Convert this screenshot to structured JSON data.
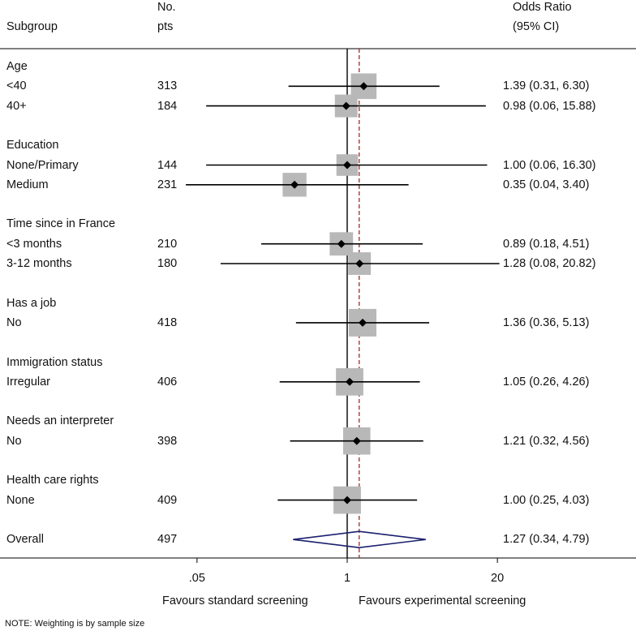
{
  "chart_data": {
    "type": "forest",
    "headers": {
      "subgroup": "Subgroup",
      "n_line1": "No.",
      "n_line2": "pts",
      "or_line1": "Odds Ratio",
      "or_line2": "(95% CI)"
    },
    "x_scale": "log",
    "xlim": [
      0.0025,
      400
    ],
    "xticks": [
      {
        "value": 0.05,
        "label": ".05"
      },
      {
        "value": 1,
        "label": "1"
      },
      {
        "value": 20,
        "label": "20"
      }
    ],
    "null_line": 1,
    "overall_line": 1.27,
    "xlabel_left": "Favours standard screening",
    "xlabel_right": "Favours experimental screening",
    "rows": [
      {
        "type": "group",
        "label": "Age"
      },
      {
        "type": "study",
        "label": "<40",
        "n": "313",
        "or": 1.39,
        "lo": 0.31,
        "hi": 6.3,
        "text": "1.39 (0.31, 6.30)",
        "weight": 313
      },
      {
        "type": "study",
        "label": "40+",
        "n": "184",
        "or": 0.98,
        "lo": 0.06,
        "hi": 15.88,
        "text": "0.98 (0.06, 15.88)",
        "weight": 184
      },
      {
        "type": "group",
        "label": "Education"
      },
      {
        "type": "study",
        "label": "None/Primary",
        "n": "144",
        "or": 1.0,
        "lo": 0.06,
        "hi": 16.3,
        "text": "1.00 (0.06, 16.30)",
        "weight": 144
      },
      {
        "type": "study",
        "label": "Medium",
        "n": "231",
        "or": 0.35,
        "lo": 0.04,
        "hi": 3.4,
        "text": "0.35 (0.04, 3.40)",
        "weight": 231
      },
      {
        "type": "group",
        "label": "Time since in France"
      },
      {
        "type": "study",
        "label": "<3 months",
        "n": "210",
        "or": 0.89,
        "lo": 0.18,
        "hi": 4.51,
        "text": "0.89 (0.18, 4.51)",
        "weight": 210
      },
      {
        "type": "study",
        "label": "3-12 months",
        "n": "180",
        "or": 1.28,
        "lo": 0.08,
        "hi": 20.82,
        "text": "1.28 (0.08, 20.82)",
        "weight": 180
      },
      {
        "type": "group",
        "label": "Has a job"
      },
      {
        "type": "study",
        "label": "No",
        "n": "418",
        "or": 1.36,
        "lo": 0.36,
        "hi": 5.13,
        "text": "1.36 (0.36, 5.13)",
        "weight": 418
      },
      {
        "type": "group",
        "label": "Immigration status"
      },
      {
        "type": "study",
        "label": "Irregular",
        "n": "406",
        "or": 1.05,
        "lo": 0.26,
        "hi": 4.26,
        "text": "1.05 (0.26, 4.26)",
        "weight": 406
      },
      {
        "type": "group",
        "label": "Needs an interpreter"
      },
      {
        "type": "study",
        "label": "No",
        "n": "398",
        "or": 1.21,
        "lo": 0.32,
        "hi": 4.56,
        "text": "1.21 (0.32, 4.56)",
        "weight": 398
      },
      {
        "type": "group",
        "label": "Health care rights"
      },
      {
        "type": "study",
        "label": "None",
        "n": "409",
        "or": 1.0,
        "lo": 0.25,
        "hi": 4.03,
        "text": "1.00 (0.25, 4.03)",
        "weight": 409
      },
      {
        "type": "overall",
        "label": "Overall",
        "n": "497",
        "or": 1.27,
        "lo": 0.34,
        "hi": 4.79,
        "text": "1.27 (0.34, 4.79)"
      }
    ],
    "note": "NOTE: Weighting is by sample size"
  },
  "colors": {
    "text": "#111111",
    "ci_line": "#000000",
    "weight_box": "#b8b8b8",
    "diamond": "#1b1f6e",
    "overall_line": "#9b2b2b"
  }
}
